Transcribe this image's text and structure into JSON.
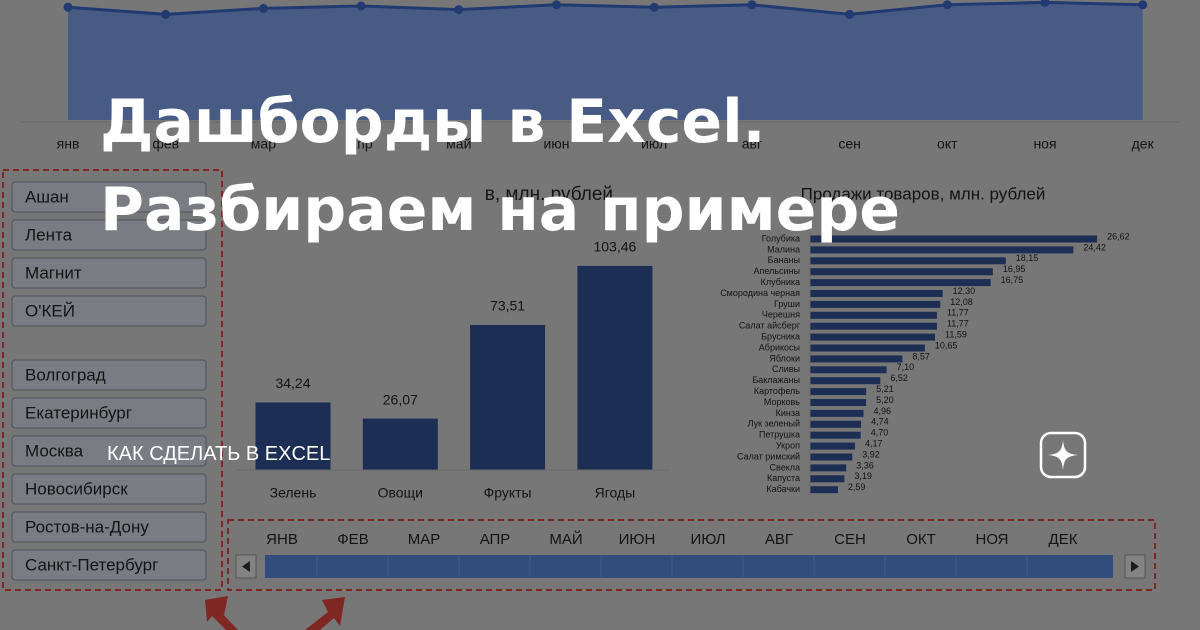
{
  "title": "Дашборды в Excel. Разбираем на примере",
  "tag": "КАК СДЕЛАТЬ В EXCEL",
  "slicers": {
    "shops": [
      "Ашан",
      "Лента",
      "Магнит",
      "О'КЕЙ"
    ],
    "cities": [
      "Волгоград",
      "Екатеринбург",
      "Москва",
      "Новосибирск",
      "Ростов-на-Дону",
      "Санкт-Петербург"
    ]
  },
  "timeline": {
    "months": [
      "ЯНВ",
      "ФЕВ",
      "МАР",
      "АПР",
      "МАЙ",
      "ИЮН",
      "ИЮЛ",
      "АВГ",
      "СЕН",
      "ОКТ",
      "НОЯ",
      "ДЕК"
    ]
  },
  "chart_data": [
    {
      "type": "area",
      "categories": [
        "янв",
        "фев",
        "мар",
        "апр",
        "май",
        "июн",
        "июл",
        "авг",
        "сен",
        "окт",
        "ноя",
        "дек"
      ],
      "values": [
        94,
        88,
        93,
        95,
        92,
        96,
        94,
        96,
        88,
        96,
        98,
        96
      ],
      "ylim": [
        0,
        100
      ],
      "color": "#3d6ad0"
    },
    {
      "type": "bar",
      "title": "в, млн. рублей",
      "categories": [
        "Зелень",
        "Овощи",
        "Фрукты",
        "Ягоды"
      ],
      "values": [
        34.24,
        26.07,
        73.51,
        103.46
      ],
      "value_labels": [
        "34,24",
        "26,07",
        "73,51",
        "103,46"
      ],
      "ylim": [
        0,
        110
      ],
      "color": "#355599"
    },
    {
      "type": "barh",
      "title": "Продажи товаров, млн. рублей",
      "categories": [
        "Голубика",
        "Малина",
        "Бананы",
        "Апельсины",
        "Клубника",
        "Смородина черная",
        "Груши",
        "Черешня",
        "Салат айсберг",
        "Брусника",
        "Абрикосы",
        "Яблоки",
        "Сливы",
        "Баклажаны",
        "Картофель",
        "Морковь",
        "Кинза",
        "Лук зеленый",
        "Петрушка",
        "Укроп",
        "Салат римский",
        "Свекла",
        "Капуста",
        "Кабачки"
      ],
      "values": [
        26.62,
        24.42,
        18.15,
        16.95,
        16.75,
        12.3,
        12.08,
        11.77,
        11.77,
        11.59,
        10.65,
        8.57,
        7.1,
        6.52,
        5.21,
        5.2,
        4.96,
        4.74,
        4.7,
        4.17,
        3.92,
        3.36,
        3.19,
        2.59
      ],
      "value_labels": [
        "26,62",
        "24,42",
        "18,15",
        "16,95",
        "16,75",
        "12,30",
        "12,08",
        "11,77",
        "11,77",
        "11,59",
        "10,65",
        "8,57",
        "7,10",
        "6,52",
        "5,21",
        "5,20",
        "4,96",
        "4,74",
        "4,70",
        "4,17",
        "3,92",
        "3,36",
        "3,19",
        "2,59"
      ],
      "xlim": [
        0,
        28
      ],
      "color": "#355599"
    }
  ]
}
